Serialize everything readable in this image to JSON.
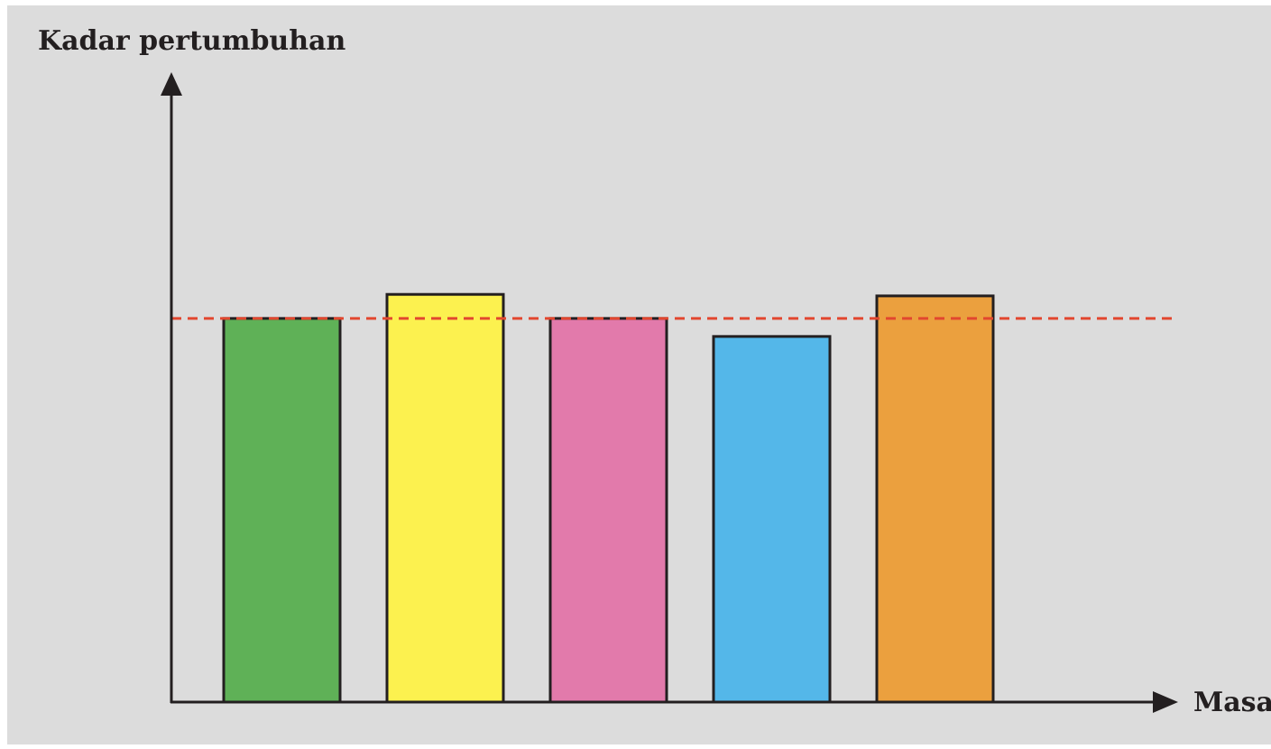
{
  "colors": {
    "background": "#dcdcdc",
    "axis": "#231f20",
    "bar_outline": "#231f20",
    "reference_line": "#e2472f"
  },
  "chart_data": {
    "type": "bar",
    "ylabel": "Kadar pertumbuhan",
    "xlabel": "Masa",
    "ylim": [
      0,
      100
    ],
    "grid": false,
    "axis_ticks": false,
    "reference_line": {
      "value": 76.6,
      "style": "dashed",
      "color": "#e2472f"
    },
    "bars": [
      {
        "value": 76.6,
        "color": "#5fb157"
      },
      {
        "value": 81.4,
        "color": "#fcf14f"
      },
      {
        "value": 76.6,
        "color": "#e27aab"
      },
      {
        "value": 73.0,
        "color": "#54b7e9"
      },
      {
        "value": 81.1,
        "color": "#eba03e"
      }
    ]
  }
}
